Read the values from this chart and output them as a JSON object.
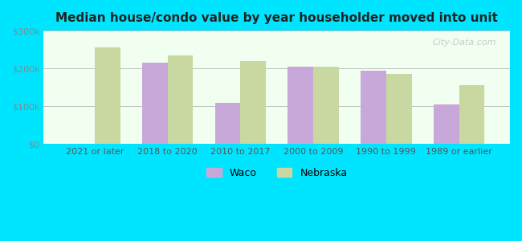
{
  "title": "Median house/condo value by year householder moved into unit",
  "categories": [
    "2021 or later",
    "2018 to 2020",
    "2010 to 2017",
    "2000 to 2009",
    "1990 to 1999",
    "1989 or earlier"
  ],
  "waco_values": [
    null,
    215000,
    110000,
    205000,
    195000,
    105000
  ],
  "nebraska_values": [
    255000,
    235000,
    220000,
    205000,
    185000,
    155000
  ],
  "waco_color": "#c8a8d8",
  "nebraska_color": "#c8d8a0",
  "background_outer": "#00e5ff",
  "background_inner_top": "#f0fff0",
  "background_inner_bottom": "#e8f8e0",
  "ylim": [
    0,
    300000
  ],
  "yticks": [
    0,
    100000,
    200000,
    300000
  ],
  "ytick_labels": [
    "$0",
    "$100k",
    "$200k",
    "$300k"
  ],
  "ylabel_color": "#808080",
  "grid_color": "#c0c0c0",
  "bar_width": 0.35,
  "legend_waco": "Waco",
  "legend_nebraska": "Nebraska",
  "watermark": "City-Data.com"
}
